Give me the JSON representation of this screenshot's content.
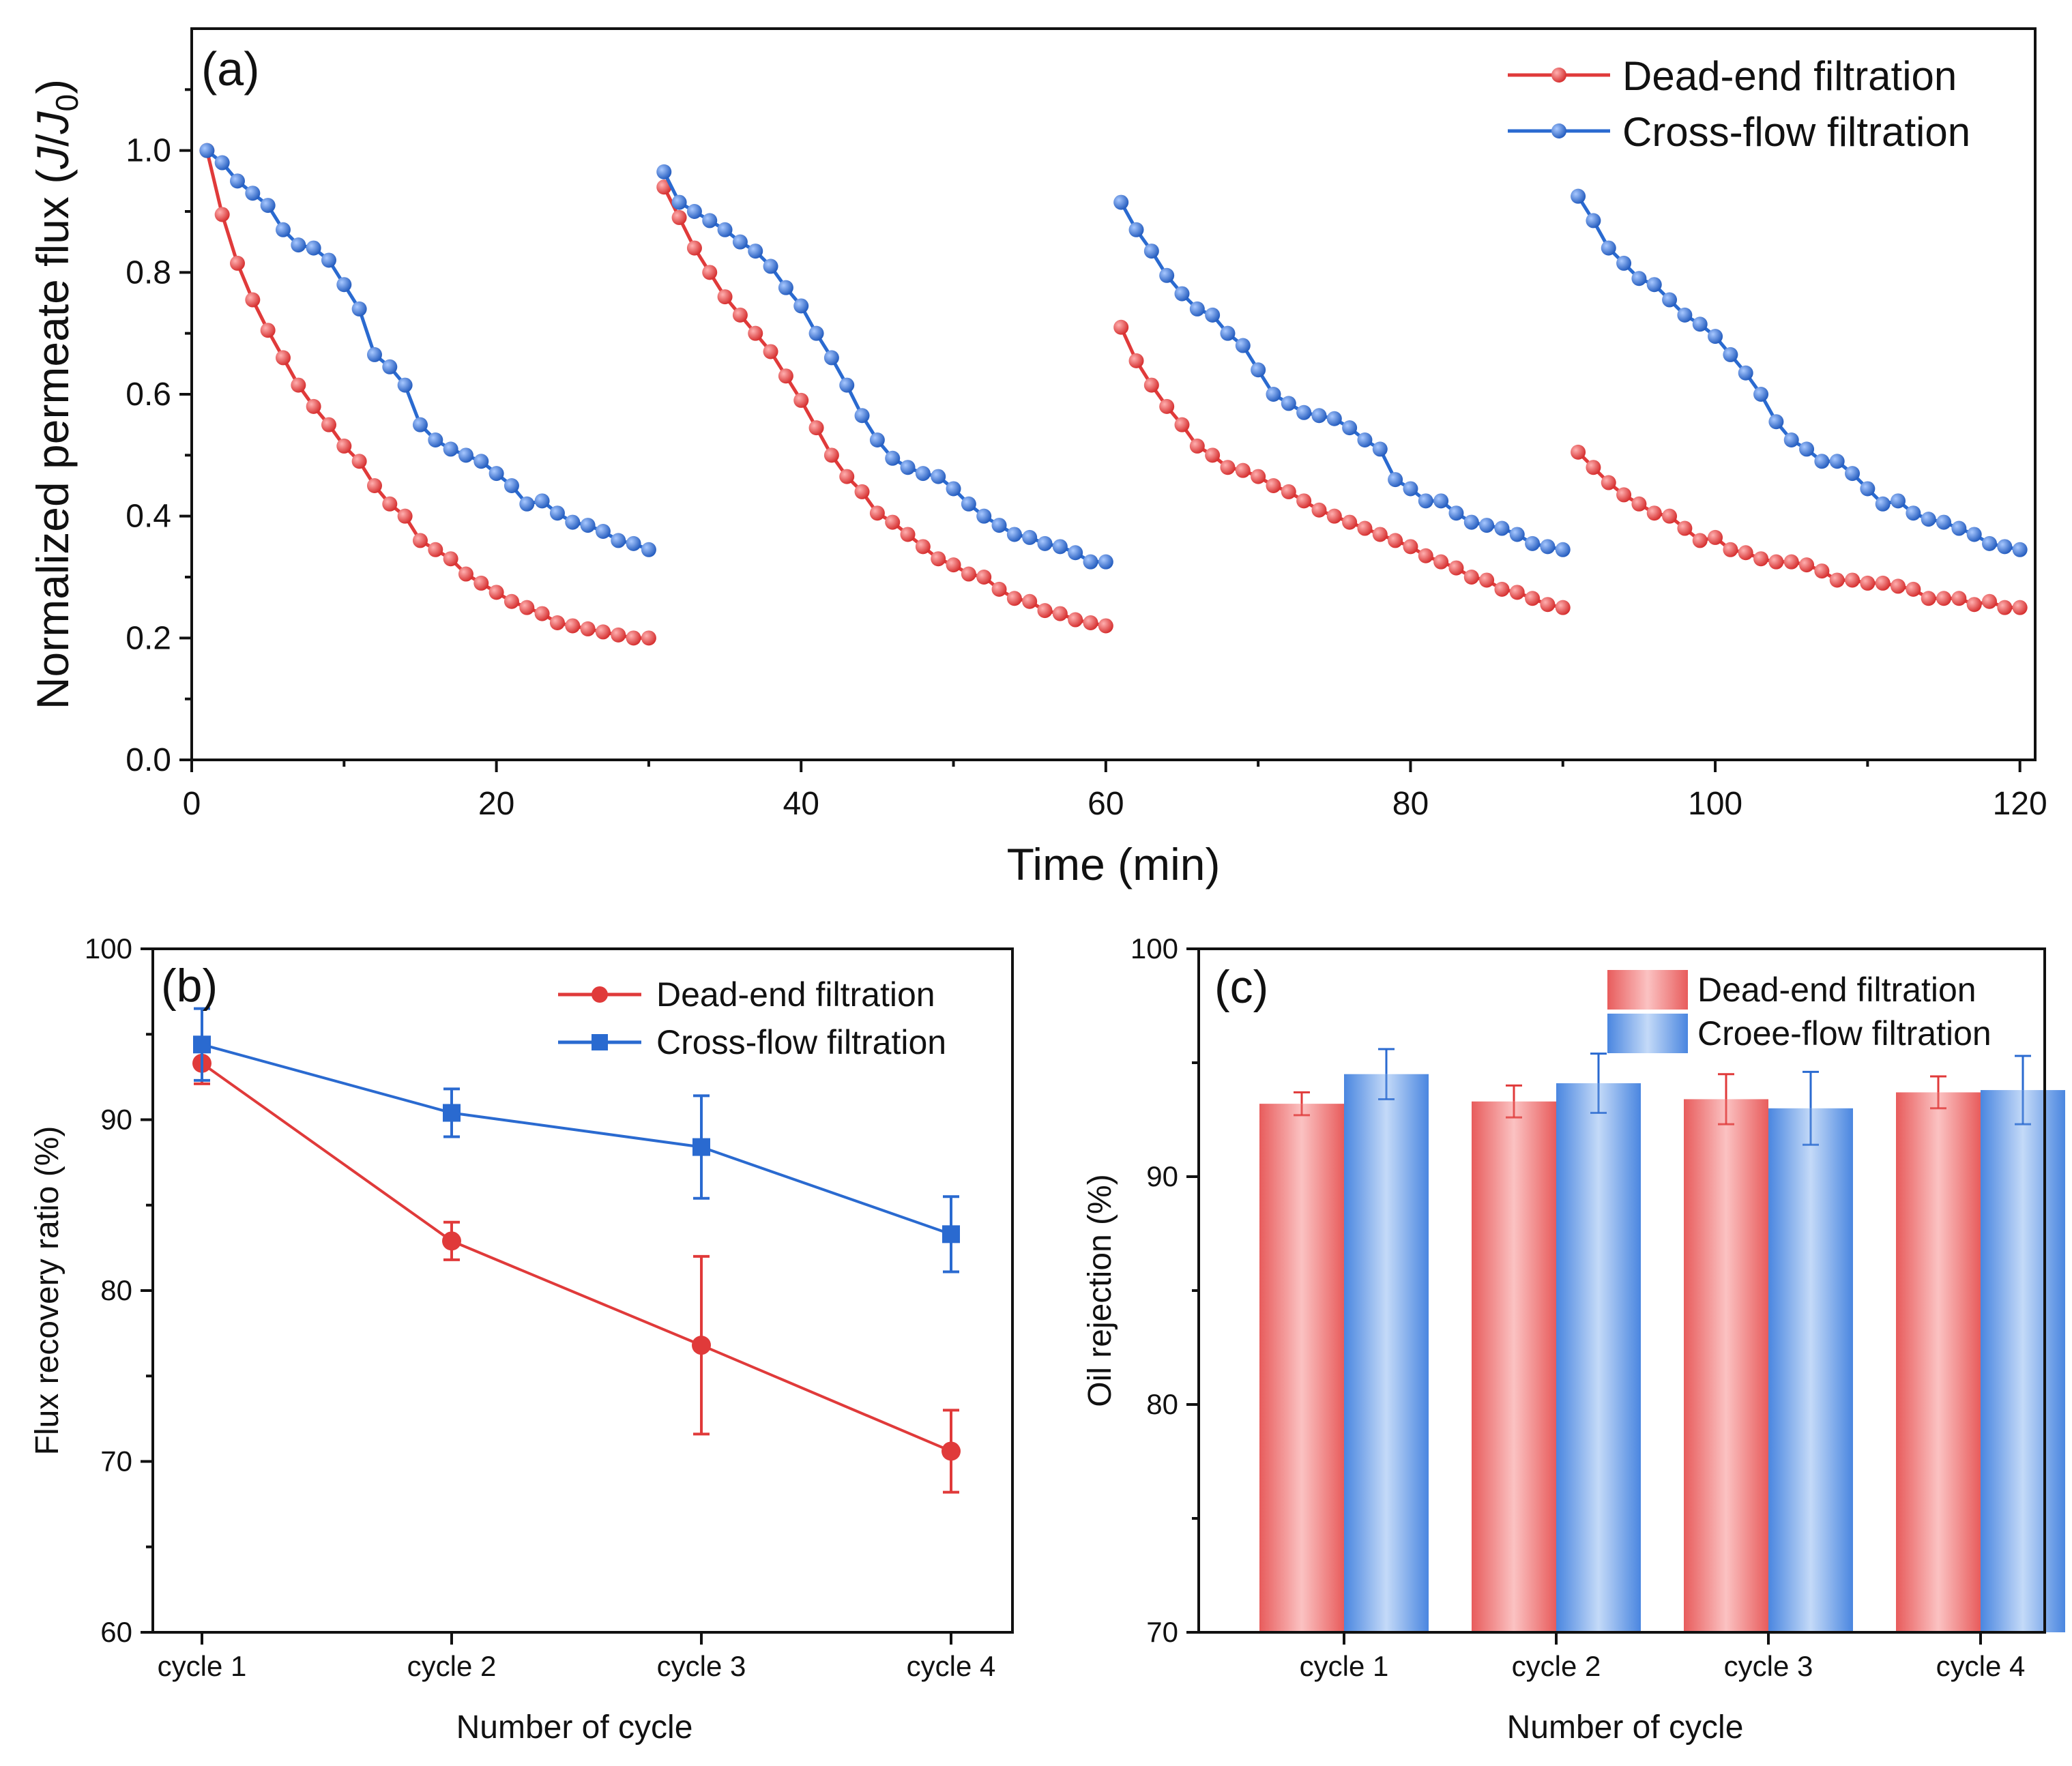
{
  "colors": {
    "dead_end": "#e03a3a",
    "cross_flow": "#2a6ad0"
  },
  "chart_data": [
    {
      "panel": "(a)",
      "type": "line",
      "xlabel": "Time (min)",
      "ylabel": "Normalized permeate flux (J/J0)",
      "ylabel_parts": {
        "main": "Normalized permeate flux (",
        "j": "J",
        "slash": "/",
        "j0": "J",
        "sub": "0",
        "close": ")"
      },
      "xlim": [
        0,
        121
      ],
      "ylim": [
        0,
        1.2
      ],
      "x_ticks": [
        0,
        20,
        40,
        60,
        80,
        100,
        120
      ],
      "x_tick_labels": [
        "0",
        "20",
        "40",
        "60",
        "80",
        "100",
        "120"
      ],
      "y_ticks": [
        0.0,
        0.2,
        0.4,
        0.6,
        0.8,
        1.0
      ],
      "y_tick_labels": [
        "0.0",
        "0.2",
        "0.4",
        "0.6",
        "0.8",
        "1.0"
      ],
      "legend_position": "top-right",
      "series": [
        {
          "name": "Dead-end filtration",
          "color": "#e03a3a",
          "segments": [
            {
              "x": [
                1,
                2,
                3,
                4,
                5,
                6,
                7,
                8,
                9,
                10,
                11,
                12,
                13,
                14,
                15,
                16,
                17,
                18,
                19,
                20,
                21,
                22,
                23,
                24,
                25,
                26,
                27,
                28,
                29,
                30
              ],
              "y": [
                1.0,
                0.895,
                0.815,
                0.755,
                0.705,
                0.66,
                0.615,
                0.58,
                0.55,
                0.515,
                0.49,
                0.45,
                0.42,
                0.4,
                0.36,
                0.345,
                0.33,
                0.305,
                0.29,
                0.275,
                0.26,
                0.25,
                0.24,
                0.225,
                0.22,
                0.215,
                0.21,
                0.205,
                0.2,
                0.2
              ]
            },
            {
              "x": [
                31,
                32,
                33,
                34,
                35,
                36,
                37,
                38,
                39,
                40,
                41,
                42,
                43,
                44,
                45,
                46,
                47,
                48,
                49,
                50,
                51,
                52,
                53,
                54,
                55,
                56,
                57,
                58,
                59,
                60
              ],
              "y": [
                0.94,
                0.89,
                0.84,
                0.8,
                0.76,
                0.73,
                0.7,
                0.67,
                0.63,
                0.59,
                0.545,
                0.5,
                0.465,
                0.44,
                0.405,
                0.39,
                0.37,
                0.35,
                0.33,
                0.32,
                0.305,
                0.3,
                0.28,
                0.265,
                0.26,
                0.245,
                0.24,
                0.23,
                0.225,
                0.22
              ]
            },
            {
              "x": [
                61,
                62,
                63,
                64,
                65,
                66,
                67,
                68,
                69,
                70,
                71,
                72,
                73,
                74,
                75,
                76,
                77,
                78,
                79,
                80,
                81,
                82,
                83,
                84,
                85,
                86,
                87,
                88,
                89,
                90
              ],
              "y": [
                0.71,
                0.655,
                0.615,
                0.58,
                0.55,
                0.515,
                0.5,
                0.48,
                0.475,
                0.465,
                0.45,
                0.44,
                0.425,
                0.41,
                0.4,
                0.39,
                0.38,
                0.37,
                0.36,
                0.35,
                0.335,
                0.325,
                0.315,
                0.3,
                0.295,
                0.28,
                0.275,
                0.265,
                0.255,
                0.25
              ]
            },
            {
              "x": [
                91,
                92,
                93,
                94,
                95,
                96,
                97,
                98,
                99,
                100,
                101,
                102,
                103,
                104,
                105,
                106,
                107,
                108,
                109,
                110,
                111,
                112,
                113,
                114,
                115,
                116,
                117,
                118,
                119,
                120
              ],
              "y": [
                0.505,
                0.48,
                0.455,
                0.435,
                0.42,
                0.405,
                0.4,
                0.38,
                0.36,
                0.365,
                0.345,
                0.34,
                0.33,
                0.325,
                0.325,
                0.32,
                0.31,
                0.295,
                0.295,
                0.29,
                0.29,
                0.285,
                0.28,
                0.265,
                0.265,
                0.265,
                0.255,
                0.26,
                0.25,
                0.25
              ]
            }
          ]
        },
        {
          "name": "Cross-flow filtration",
          "color": "#2a6ad0",
          "segments": [
            {
              "x": [
                1,
                2,
                3,
                4,
                5,
                6,
                7,
                8,
                9,
                10,
                11,
                12,
                13,
                14,
                15,
                16,
                17,
                18,
                19,
                20,
                21,
                22,
                23,
                24,
                25,
                26,
                27,
                28,
                29,
                30
              ],
              "y": [
                1.0,
                0.98,
                0.95,
                0.93,
                0.91,
                0.87,
                0.845,
                0.84,
                0.82,
                0.78,
                0.74,
                0.665,
                0.645,
                0.615,
                0.55,
                0.525,
                0.51,
                0.5,
                0.49,
                0.47,
                0.45,
                0.42,
                0.425,
                0.405,
                0.39,
                0.385,
                0.375,
                0.36,
                0.355,
                0.345
              ]
            },
            {
              "x": [
                31,
                32,
                33,
                34,
                35,
                36,
                37,
                38,
                39,
                40,
                41,
                42,
                43,
                44,
                45,
                46,
                47,
                48,
                49,
                50,
                51,
                52,
                53,
                54,
                55,
                56,
                57,
                58,
                59,
                60
              ],
              "y": [
                0.965,
                0.915,
                0.9,
                0.885,
                0.87,
                0.85,
                0.835,
                0.81,
                0.775,
                0.745,
                0.7,
                0.66,
                0.615,
                0.565,
                0.525,
                0.495,
                0.48,
                0.47,
                0.465,
                0.445,
                0.42,
                0.4,
                0.385,
                0.37,
                0.365,
                0.355,
                0.35,
                0.34,
                0.325,
                0.325
              ]
            },
            {
              "x": [
                61,
                62,
                63,
                64,
                65,
                66,
                67,
                68,
                69,
                70,
                71,
                72,
                73,
                74,
                75,
                76,
                77,
                78,
                79,
                80,
                81,
                82,
                83,
                84,
                85,
                86,
                87,
                88,
                89,
                90
              ],
              "y": [
                0.915,
                0.87,
                0.835,
                0.795,
                0.765,
                0.74,
                0.73,
                0.7,
                0.68,
                0.64,
                0.6,
                0.585,
                0.57,
                0.565,
                0.56,
                0.545,
                0.525,
                0.51,
                0.46,
                0.445,
                0.425,
                0.425,
                0.405,
                0.39,
                0.385,
                0.38,
                0.37,
                0.355,
                0.35,
                0.345
              ]
            },
            {
              "x": [
                91,
                92,
                93,
                94,
                95,
                96,
                97,
                98,
                99,
                100,
                101,
                102,
                103,
                104,
                105,
                106,
                107,
                108,
                109,
                110,
                111,
                112,
                113,
                114,
                115,
                116,
                117,
                118,
                119,
                120
              ],
              "y": [
                0.925,
                0.885,
                0.84,
                0.815,
                0.79,
                0.78,
                0.755,
                0.73,
                0.715,
                0.695,
                0.665,
                0.635,
                0.6,
                0.555,
                0.525,
                0.51,
                0.49,
                0.49,
                0.47,
                0.445,
                0.42,
                0.425,
                0.405,
                0.395,
                0.39,
                0.38,
                0.37,
                0.355,
                0.35,
                0.345
              ]
            }
          ]
        }
      ]
    },
    {
      "panel": "(b)",
      "type": "line",
      "xlabel": "Number of cycle",
      "ylabel": "Flux recovery ratio (%)",
      "categories": [
        "cycle 1",
        "cycle 2",
        "cycle 3",
        "cycle 4"
      ],
      "ylim": [
        60,
        100
      ],
      "y_ticks": [
        60,
        70,
        80,
        90,
        100
      ],
      "y_tick_labels": [
        "60",
        "70",
        "80",
        "90",
        "100"
      ],
      "legend_position": "top-right",
      "series": [
        {
          "name": "Dead-end filtration",
          "color": "#e03a3a",
          "marker": "circle",
          "values": [
            93.3,
            82.9,
            76.8,
            70.6
          ],
          "errors": [
            1.2,
            1.1,
            5.2,
            2.4
          ]
        },
        {
          "name": "Cross-flow filtration",
          "color": "#2a6ad0",
          "marker": "square",
          "values": [
            94.4,
            90.4,
            88.4,
            83.3
          ],
          "errors": [
            2.1,
            1.4,
            3.0,
            2.2
          ]
        }
      ]
    },
    {
      "panel": "(c)",
      "type": "bar",
      "xlabel": "Number of cycle",
      "ylabel": "Oil rejection (%)",
      "categories": [
        "cycle 1",
        "cycle 2",
        "cycle 3",
        "cycle 4"
      ],
      "ylim": [
        70,
        100
      ],
      "y_ticks": [
        70,
        80,
        90,
        100
      ],
      "y_tick_labels": [
        "70",
        "80",
        "90",
        "100"
      ],
      "legend_position": "top-right",
      "series": [
        {
          "name": "Dead-end filtration",
          "color": "#e03a3a",
          "values": [
            93.2,
            93.3,
            93.4,
            93.7
          ],
          "errors": [
            0.5,
            0.7,
            1.1,
            0.7
          ]
        },
        {
          "name": "Croee-flow filtration",
          "color": "#2a6ad0",
          "values": [
            94.5,
            94.1,
            93.0,
            93.8
          ],
          "errors": [
            1.1,
            1.3,
            1.6,
            1.5
          ]
        }
      ]
    }
  ]
}
